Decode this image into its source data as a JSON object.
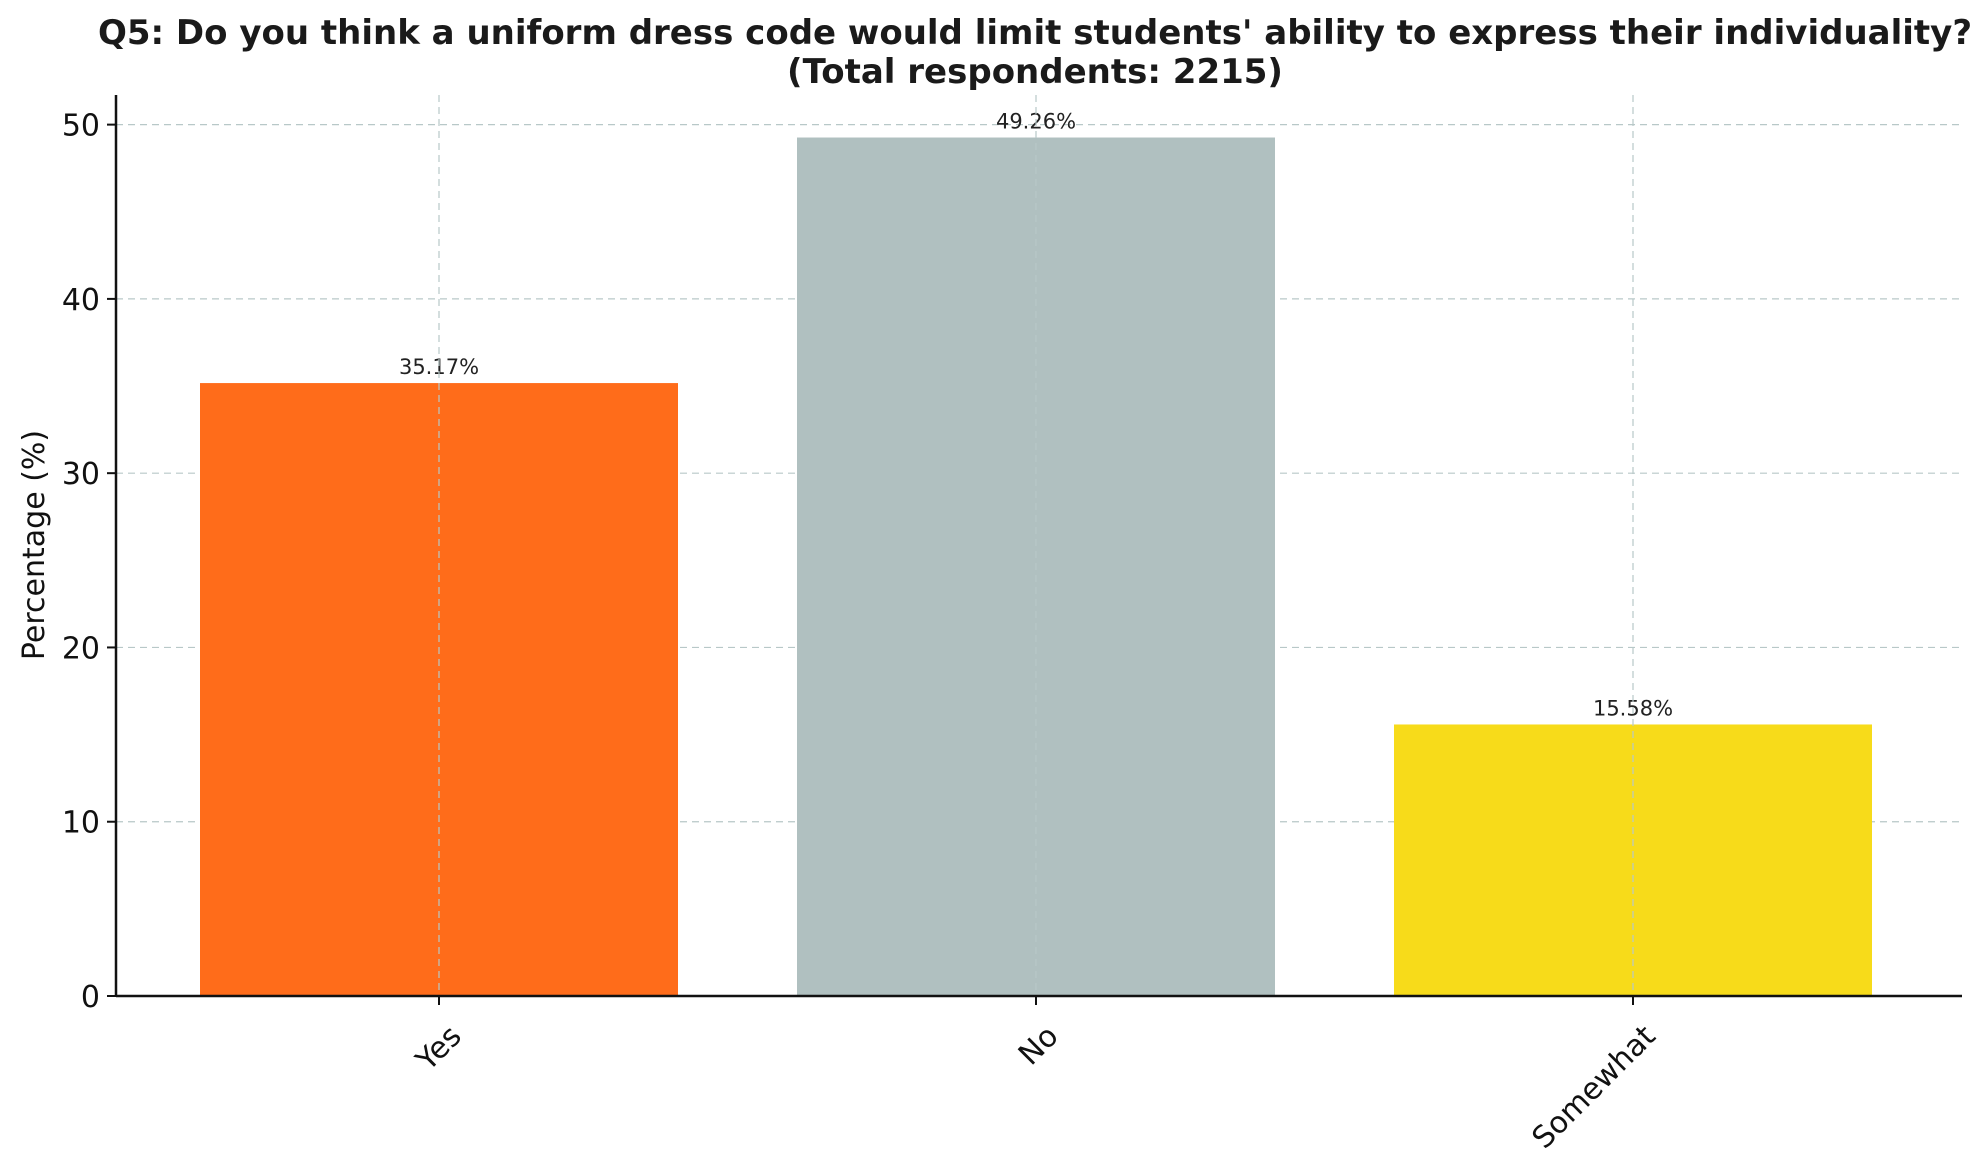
{
  "chart_data": {
    "type": "bar",
    "title_lines": [
      "Q5: Do you think a uniform dress code would limit students' ability to express their individuality?",
      "(Total respondents: 2215)"
    ],
    "xlabel": "",
    "ylabel": "Percentage (%)",
    "categories": [
      "Yes",
      "No",
      "Somewhat"
    ],
    "values": [
      35.17,
      49.26,
      15.58
    ],
    "data_labels": [
      "35.17%",
      "49.26%",
      "15.58%"
    ],
    "colors": [
      "#ff6c1a",
      "#b0c0c0",
      "#f7db1a"
    ],
    "ylim": [
      0,
      51.7
    ],
    "yticks": [
      0,
      10,
      20,
      30,
      40,
      50
    ],
    "grid": true,
    "legend": "none"
  }
}
